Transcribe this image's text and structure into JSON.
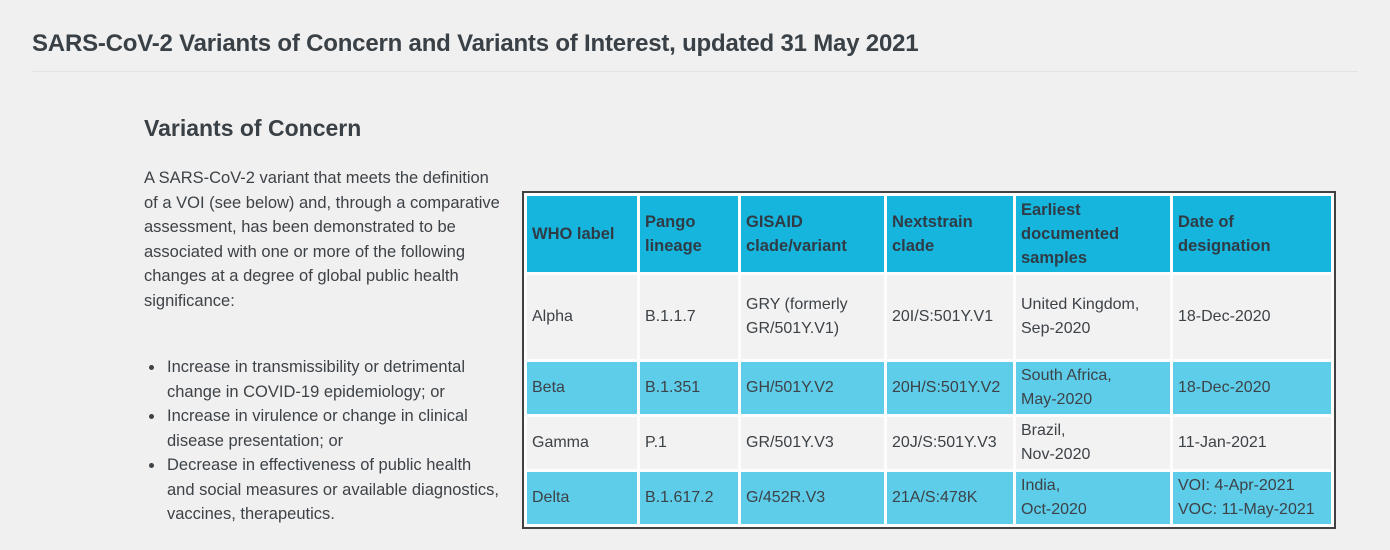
{
  "page": {
    "title": "SARS-CoV-2 Variants of Concern and Variants of Interest, updated 31 May 2021"
  },
  "voc_section": {
    "heading": "Variants of Concern",
    "intro": "A SARS-CoV-2 variant that meets the definition of a VOI (see below) and, through a comparative assessment, has been demonstrated to be associated with one or more of the following changes at a degree of global public health significance:",
    "criteria": [
      "Increase in transmissibility or detrimental change in COVID-19 epidemiology; or",
      "Increase in virulence or change in clinical disease presentation; or",
      "Decrease in effectiveness of public health and social measures or available diagnostics, vaccines, therapeutics."
    ]
  },
  "voc_table": {
    "columns": [
      "WHO label",
      "Pango\nlineage",
      "GISAID\nclade/variant",
      "Nextstrain\nclade",
      "Earliest\ndocumented\nsamples",
      "Date of\ndesignation"
    ],
    "rows": [
      {
        "cells": [
          "Alpha",
          "B.1.1.7",
          "GRY (formerly\nGR/501Y.V1)",
          "20I/S:501Y.V1",
          "United Kingdom,\nSep-2020",
          "18-Dec-2020"
        ],
        "highlighted": false
      },
      {
        "cells": [
          "Beta",
          "B.1.351",
          "GH/501Y.V2",
          "20H/S:501Y.V2",
          "South Africa,\nMay-2020",
          "18-Dec-2020"
        ],
        "highlighted": true
      },
      {
        "cells": [
          "Gamma",
          "P.1",
          "GR/501Y.V3",
          "20J/S:501Y.V3",
          "Brazil,\nNov-2020",
          "11-Jan-2021"
        ],
        "highlighted": false
      },
      {
        "cells": [
          "Delta",
          "B.1.617.2",
          "G/452R.V3",
          "21A/S:478K",
          "India,\nOct-2020",
          "VOI: 4-Apr-2021\nVOC: 11-May-2021"
        ],
        "highlighted": true
      }
    ]
  },
  "colors": {
    "page_background": "#f0f0f0",
    "header_cell_cyan": "#16b5dd",
    "highlight_row_cyan": "#5dcdea",
    "plain_row_gray": "#f2f2f2",
    "table_border": "#414141",
    "heading_text": "#394046",
    "body_text": "#3d4247"
  }
}
